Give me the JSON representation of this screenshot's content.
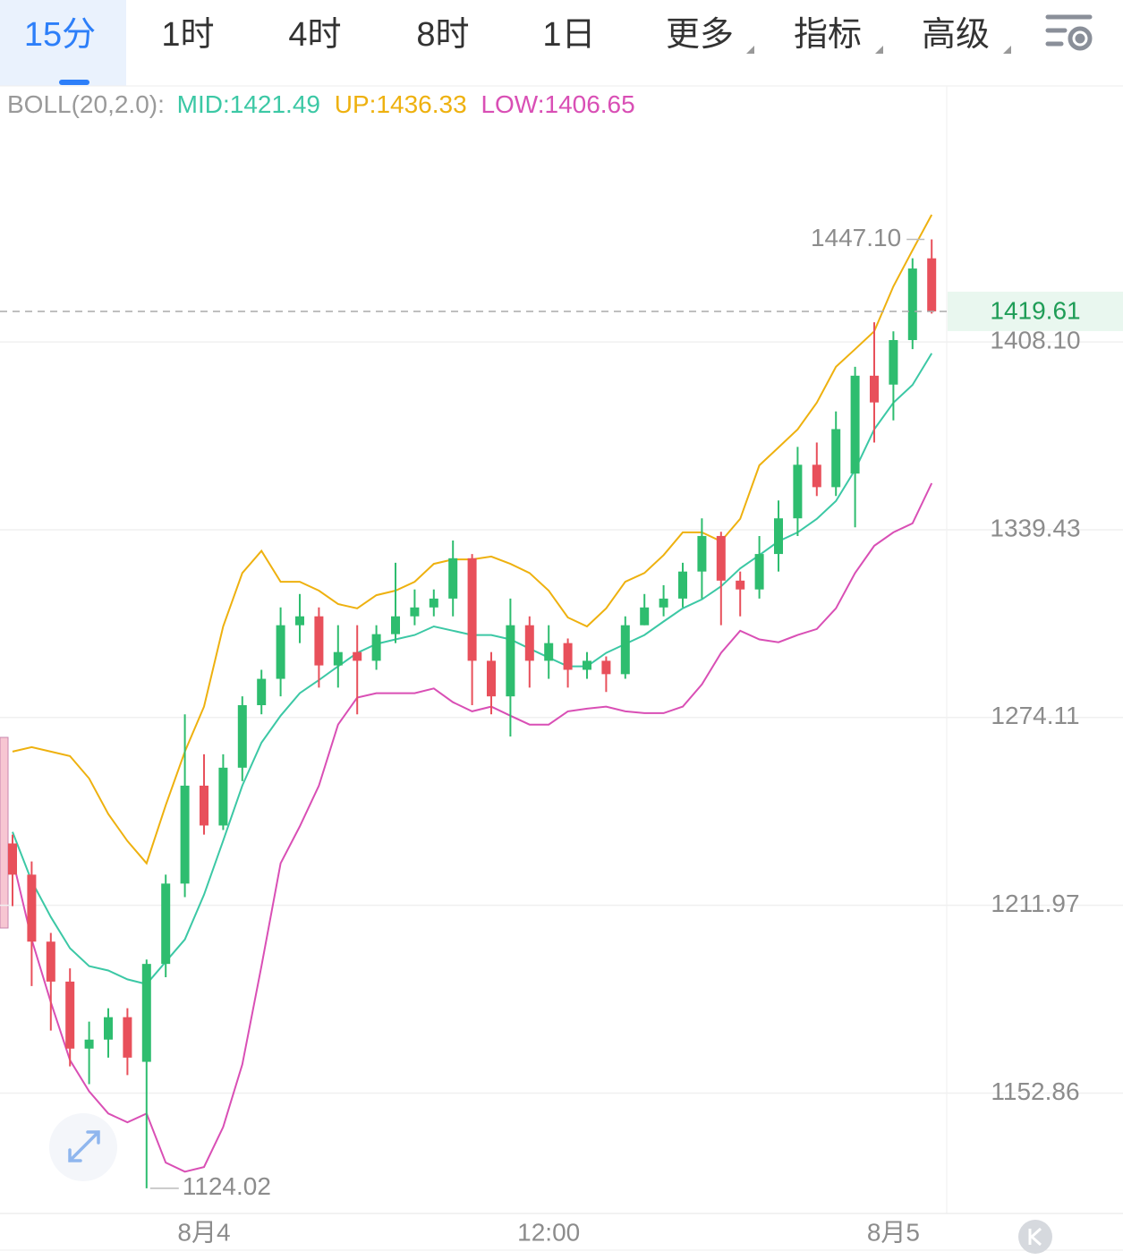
{
  "tabs": [
    "15分",
    "1时",
    "4时",
    "8时",
    "1日",
    "更多",
    "指标",
    "高级"
  ],
  "indicator": [
    "BOLL(20,2.0):",
    "MID:1421.49",
    "UP:1436.33",
    "LOW:1406.65"
  ],
  "chart_data": {
    "type": "candlestick",
    "categories": [
      null,
      null,
      null,
      null,
      null,
      null,
      null,
      null,
      null,
      null,
      "8月4",
      null,
      null,
      null,
      null,
      null,
      null,
      null,
      null,
      null,
      null,
      null,
      null,
      null,
      null,
      null,
      null,
      null,
      "12:00",
      null,
      null,
      null,
      null,
      null,
      null,
      null,
      null,
      null,
      null,
      null,
      null,
      null,
      null,
      null,
      null,
      null,
      "8月5",
      null,
      null
    ],
    "open": [
      1232.1,
      1221.9,
      1200.3,
      1187.6,
      1166.6,
      1169.4,
      1176.4,
      1162.5,
      1193.2,
      1219.0,
      1251.2,
      1238.0,
      1257.2,
      1278.3,
      1287.3,
      1305.8,
      1308.9,
      1291.9,
      1296.5,
      1293.5,
      1302.7,
      1308.9,
      1312.0,
      1315.1,
      1329.3,
      1293.5,
      1281.3,
      1305.8,
      1293.5,
      1299.6,
      1290.4,
      1293.5,
      1288.9,
      1305.8,
      1312.0,
      1315.1,
      1324.6,
      1337.2,
      1321.4,
      1318.3,
      1330.8,
      1343.5,
      1362.8,
      1354.7,
      1359.6,
      1395.5,
      1392.2,
      1408.8,
      1439.8
    ],
    "high": [
      1235.0,
      1226.2,
      1203.1,
      1191.8,
      1175.0,
      1179.2,
      1179.2,
      1194.6,
      1221.9,
      1275.2,
      1261.7,
      1261.7,
      1281.3,
      1290.4,
      1312.0,
      1316.7,
      1312.0,
      1305.8,
      1305.8,
      1305.8,
      1327.7,
      1318.3,
      1318.3,
      1335.6,
      1330.8,
      1296.5,
      1315.1,
      1308.9,
      1305.8,
      1301.2,
      1296.5,
      1295.0,
      1308.9,
      1316.7,
      1319.8,
      1327.7,
      1343.5,
      1338.7,
      1324.6,
      1337.2,
      1349.9,
      1369.3,
      1370.9,
      1382.3,
      1398.8,
      1415.5,
      1412.1,
      1439.8,
      1447.1
    ],
    "low": [
      1211.7,
      1186.2,
      1172.2,
      1161.1,
      1155.6,
      1163.8,
      1158.4,
      1124.02,
      1189.0,
      1214.6,
      1235.0,
      1236.5,
      1252.7,
      1275.2,
      1281.3,
      1299.6,
      1284.3,
      1284.3,
      1275.2,
      1290.4,
      1299.6,
      1305.8,
      1308.9,
      1308.9,
      1278.3,
      1275.2,
      1267.7,
      1284.3,
      1287.3,
      1284.3,
      1287.3,
      1282.8,
      1287.3,
      1305.8,
      1308.9,
      1312.0,
      1315.1,
      1305.8,
      1308.9,
      1315.1,
      1324.6,
      1337.2,
      1351.5,
      1351.5,
      1340.3,
      1370.9,
      1379.0,
      1405.4,
      1418.8
    ],
    "close": [
      1221.9,
      1200.3,
      1187.6,
      1166.6,
      1169.4,
      1176.4,
      1163.8,
      1193.2,
      1219.0,
      1251.2,
      1238.0,
      1257.2,
      1278.3,
      1287.3,
      1305.8,
      1308.9,
      1291.9,
      1296.5,
      1293.5,
      1302.7,
      1308.9,
      1312.0,
      1315.1,
      1329.3,
      1293.5,
      1281.3,
      1305.8,
      1293.5,
      1299.6,
      1290.4,
      1293.5,
      1288.9,
      1305.8,
      1312.0,
      1315.1,
      1324.6,
      1337.2,
      1321.4,
      1318.3,
      1330.8,
      1343.5,
      1362.8,
      1354.7,
      1375.8,
      1395.5,
      1385.6,
      1408.8,
      1435.9,
      1419.61
    ],
    "up_color": "#2ebd6f",
    "down_color": "#e8505b",
    "series": [
      {
        "color": "#eeb10f",
        "values": [
          1262.6,
          1264.1,
          1262.6,
          1261.1,
          1253.6,
          1241.8,
          1232.9,
          1225.6,
          1244.7,
          1262.6,
          1277.8,
          1305.4,
          1324.1,
          1331.9,
          1321.0,
          1321.0,
          1317.9,
          1313.2,
          1311.7,
          1316.3,
          1317.9,
          1321.0,
          1327.3,
          1328.9,
          1328.9,
          1329.9,
          1327.3,
          1324.1,
          1317.9,
          1308.5,
          1305.4,
          1311.7,
          1321.0,
          1324.1,
          1330.4,
          1338.5,
          1338.5,
          1335.3,
          1343.3,
          1362.6,
          1369.1,
          1375.7,
          1385.5,
          1398.8,
          1405.4,
          1412.1,
          1429.1,
          1442.9,
          1456.6
        ]
      },
      {
        "color": "#3cc8a5",
        "values": [
          1235.9,
          1219.8,
          1208.2,
          1198.2,
          1192.5,
          1191.1,
          1188.3,
          1186.8,
          1193.9,
          1201.0,
          1215.4,
          1233.0,
          1251.2,
          1265.6,
          1274.7,
          1282.4,
          1286.9,
          1291.6,
          1296.2,
          1299.3,
          1300.9,
          1302.4,
          1305.4,
          1303.9,
          1302.4,
          1302.4,
          1300.9,
          1297.7,
          1294.6,
          1291.6,
          1291.6,
          1296.2,
          1299.3,
          1302.4,
          1307.1,
          1311.7,
          1314.8,
          1319.4,
          1325.7,
          1330.4,
          1335.3,
          1338.5,
          1343.3,
          1349.7,
          1361.0,
          1375.7,
          1385.5,
          1392.1,
          1403.8
        ]
      },
      {
        "color": "#d94fb5",
        "values": [
          1227.1,
          1201.0,
          1181.1,
          1163.0,
          1153.4,
          1146.6,
          1143.9,
          1146.6,
          1131.7,
          1129.0,
          1130.4,
          1142.5,
          1161.7,
          1192.5,
          1225.6,
          1237.7,
          1251.2,
          1271.7,
          1280.9,
          1282.4,
          1282.4,
          1282.4,
          1284.0,
          1279.3,
          1276.2,
          1277.8,
          1274.7,
          1271.7,
          1271.7,
          1276.2,
          1277.1,
          1277.8,
          1276.2,
          1275.6,
          1275.6,
          1277.8,
          1285.4,
          1296.2,
          1303.9,
          1300.9,
          1299.9,
          1302.4,
          1304.5,
          1311.7,
          1324.1,
          1333.7,
          1338.5,
          1341.7,
          1356.1
        ]
      }
    ],
    "ylim": [
      1116.5,
      1506
    ],
    "log": true,
    "yticks": [
      {
        "value": 1408.1,
        "label": "1408.10"
      },
      1339.43,
      1274.11,
      1211.97,
      1152.86
    ],
    "grid": true,
    "last_price": 1419.61,
    "max_label": {
      "value": 1447.1,
      "label": "1447.10"
    },
    "min_label": 1124.02
  }
}
